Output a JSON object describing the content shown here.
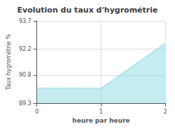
{
  "chart_data": {
    "type": "area",
    "title": "Evolution du taux d'hygrométrie",
    "xlabel": "heure par heure",
    "ylabel": "Taux hygrométrie %",
    "x": [
      0,
      1,
      2
    ],
    "values": [
      90.1,
      90.1,
      92.5
    ],
    "xlim": [
      0,
      2
    ],
    "ylim": [
      89.3,
      93.7
    ],
    "xticks": [
      0,
      1,
      2
    ],
    "yticks": [
      89.3,
      90.8,
      92.2,
      93.7
    ],
    "color": "#7dd4e0",
    "line_style": "dotted",
    "grid": true
  }
}
